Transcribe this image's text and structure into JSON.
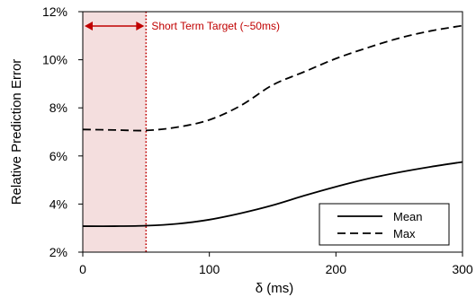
{
  "chart_data": {
    "type": "line",
    "xlabel": "δ (ms)",
    "ylabel": "Relative Prediction Error",
    "xlim": [
      0,
      300
    ],
    "ylim": [
      2,
      12
    ],
    "x_ticks": [
      0,
      100,
      200,
      300
    ],
    "y_ticks": [
      2,
      4,
      6,
      8,
      10,
      12
    ],
    "y_tick_labels": [
      "2%",
      "4%",
      "6%",
      "8%",
      "10%",
      "12%"
    ],
    "grid": false,
    "legend_position": "bottom-right",
    "annotation": {
      "text": "Short Term Target (~50ms)",
      "range": [
        0,
        50
      ],
      "color": "#c00000"
    },
    "series": [
      {
        "name": "Mean",
        "style": "solid",
        "x": [
          0,
          25,
          50,
          75,
          100,
          125,
          150,
          175,
          200,
          225,
          250,
          275,
          300
        ],
        "values": [
          3.08,
          3.08,
          3.1,
          3.18,
          3.35,
          3.62,
          3.95,
          4.35,
          4.72,
          5.05,
          5.32,
          5.55,
          5.75
        ]
      },
      {
        "name": "Max",
        "style": "dashed",
        "x": [
          0,
          25,
          50,
          75,
          100,
          125,
          150,
          175,
          200,
          225,
          250,
          275,
          300
        ],
        "values": [
          7.1,
          7.08,
          7.06,
          7.2,
          7.5,
          8.1,
          8.95,
          9.5,
          10.05,
          10.5,
          10.9,
          11.2,
          11.42
        ]
      }
    ]
  }
}
